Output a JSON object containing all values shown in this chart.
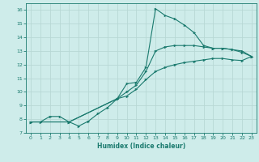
{
  "title": "",
  "xlabel": "Humidex (Indice chaleur)",
  "bg_color": "#ceecea",
  "line_color": "#1a7a6e",
  "grid_color": "#b8d8d5",
  "xlim": [
    -0.5,
    23.5
  ],
  "ylim": [
    7,
    16.5
  ],
  "xticks": [
    0,
    1,
    2,
    3,
    4,
    5,
    6,
    7,
    8,
    9,
    10,
    11,
    12,
    13,
    14,
    15,
    16,
    17,
    18,
    19,
    20,
    21,
    22,
    23
  ],
  "yticks": [
    7,
    8,
    9,
    10,
    11,
    12,
    13,
    14,
    15,
    16
  ],
  "line1_x": [
    0,
    1,
    2,
    3,
    4,
    5,
    6,
    7,
    8,
    9,
    10,
    11,
    12,
    13,
    14,
    15,
    16,
    17,
    18,
    19,
    20,
    21,
    22,
    23
  ],
  "line1_y": [
    7.8,
    7.8,
    8.2,
    8.2,
    7.8,
    7.5,
    7.85,
    8.4,
    8.85,
    9.5,
    10.6,
    10.7,
    11.8,
    16.1,
    15.6,
    15.35,
    14.9,
    14.35,
    13.4,
    13.2,
    13.2,
    13.1,
    12.9,
    12.6
  ],
  "line2_x": [
    0,
    4,
    9,
    10,
    11,
    12,
    13,
    14,
    15,
    16,
    17,
    18,
    19,
    20,
    21,
    22,
    23
  ],
  "line2_y": [
    7.8,
    7.8,
    9.5,
    10.0,
    10.5,
    11.5,
    13.0,
    13.3,
    13.4,
    13.4,
    13.4,
    13.3,
    13.2,
    13.2,
    13.1,
    13.0,
    12.6
  ],
  "line3_x": [
    0,
    4,
    9,
    10,
    11,
    12,
    13,
    14,
    15,
    16,
    17,
    18,
    19,
    20,
    21,
    22,
    23
  ],
  "line3_y": [
    7.8,
    7.8,
    9.5,
    9.7,
    10.2,
    10.9,
    11.5,
    11.8,
    12.0,
    12.15,
    12.25,
    12.35,
    12.45,
    12.45,
    12.35,
    12.3,
    12.6
  ]
}
